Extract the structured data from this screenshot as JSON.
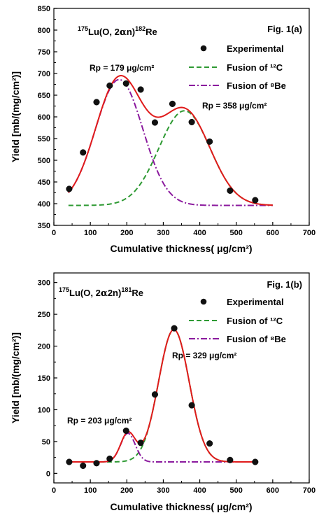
{
  "chart_data": [
    {
      "type": "scatter",
      "fig_label": "Fig. 1(a)",
      "reaction": {
        "pre": "175",
        "a": "Lu(O, 2",
        "b": "n)",
        "post": "182",
        "c": "Re"
      },
      "xlabel": "Cumulative thickness( μg/cm²)",
      "ylabel": "Yield [mb/(mg/cm²)]",
      "xlim": [
        0,
        700
      ],
      "ylim": [
        350,
        850
      ],
      "xticks": [
        0,
        100,
        200,
        300,
        400,
        500,
        600,
        700
      ],
      "yticks": [
        350,
        400,
        450,
        500,
        550,
        600,
        650,
        700,
        750,
        800,
        850
      ],
      "legend": [
        "Experimental",
        "Fusion of ¹²C",
        "Fusion of ⁸Be"
      ],
      "legend_position": "top-right",
      "annotations": [
        "Rp = 179 μg/cm²",
        "Rp = 358 μg/cm²"
      ],
      "experimental": {
        "x": [
          42,
          80,
          117,
          153,
          198,
          238,
          277,
          325,
          378,
          427,
          483,
          552
        ],
        "y": [
          434,
          518,
          634,
          672,
          677,
          663,
          587,
          630,
          588,
          543,
          430,
          408
        ]
      },
      "fit": {
        "baseline": 396,
        "be8": {
          "center": 179,
          "amp": 290,
          "sigma": 65
        },
        "c12": {
          "center": 358,
          "amp": 218,
          "sigma": 70
        },
        "x_range": [
          40,
          600
        ]
      }
    },
    {
      "type": "scatter",
      "fig_label": "Fig. 1(b)",
      "reaction": {
        "pre": "175",
        "a": "Lu(O, 2",
        "b": "2n)",
        "post": "181",
        "c": "Re"
      },
      "xlabel": "Cumulative thickness( μg/cm²)",
      "ylabel": "Yield [mb/(mg/cm²)]",
      "xlim": [
        0,
        700
      ],
      "ylim": [
        -15,
        315
      ],
      "xticks": [
        0,
        100,
        200,
        300,
        400,
        500,
        600,
        700
      ],
      "yticks": [
        0,
        50,
        100,
        150,
        200,
        250,
        300
      ],
      "legend": [
        "Experimental",
        "Fusion of ¹²C",
        "Fusion of ⁸Be"
      ],
      "legend_position": "top-right",
      "annotations": [
        "Rp = 203 μg/cm²",
        "Rp = 329 μg/cm²"
      ],
      "experimental": {
        "x": [
          42,
          80,
          117,
          153,
          198,
          238,
          277,
          330,
          378,
          427,
          483,
          552
        ],
        "y": [
          18,
          12,
          16,
          23,
          67,
          48,
          124,
          228,
          107,
          47,
          21,
          18
        ]
      },
      "fit": {
        "baseline": 18,
        "be8": {
          "center": 203,
          "amp": 45,
          "sigma": 20
        },
        "c12": {
          "center": 329,
          "amp": 208,
          "sigma": 42
        },
        "x_range": [
          40,
          555
        ]
      }
    }
  ]
}
